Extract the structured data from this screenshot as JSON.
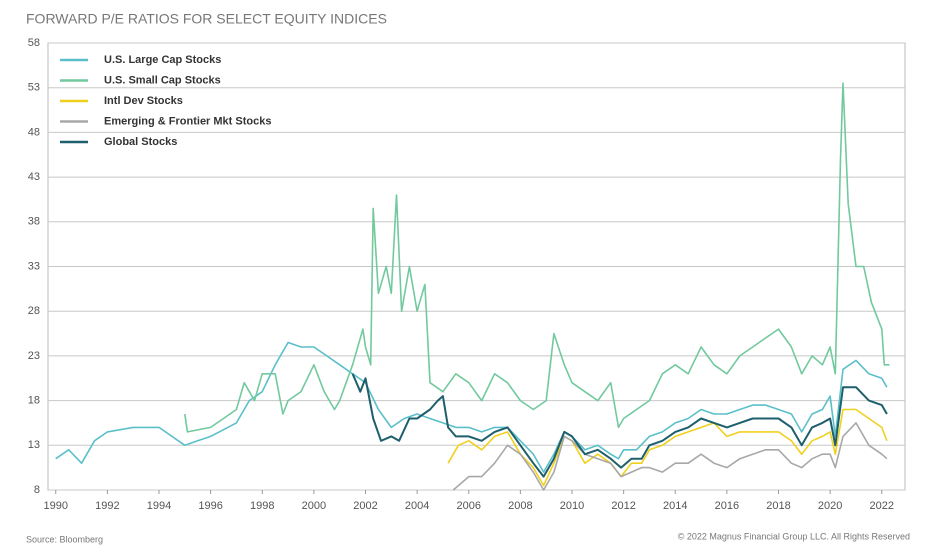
{
  "chart_data": {
    "type": "line",
    "title": "FORWARD P/E RATIOS FOR SELECT EQUITY INDICES",
    "source": "Source: Bloomberg",
    "copyright": "© 2022 Magnus Financial Group LLC. All Rights Reserved",
    "xlim": [
      1989.7,
      2022.9
    ],
    "xticks": [
      1990,
      1992,
      1994,
      1996,
      1998,
      2000,
      2002,
      2004,
      2006,
      2008,
      2010,
      2012,
      2014,
      2016,
      2018,
      2020,
      2022
    ],
    "ylim": [
      8,
      58
    ],
    "yticks": [
      8,
      13,
      18,
      23,
      28,
      33,
      38,
      43,
      48,
      53,
      58
    ],
    "grid": true,
    "legend": "top-left",
    "series": [
      {
        "name": "U.S. Large Cap Stocks",
        "color": "#5bbfca",
        "x": [
          1990,
          1990.5,
          1991,
          1991.5,
          1992,
          1993,
          1994,
          1995,
          1995.5,
          1996,
          1997,
          1997.5,
          1998,
          1998.5,
          1999,
          1999.5,
          2000,
          2000.5,
          2001,
          2001.5,
          2002,
          2002.5,
          2003,
          2003.5,
          2004,
          2004.5,
          2005,
          2005.5,
          2006,
          2006.5,
          2007,
          2007.5,
          2008,
          2008.5,
          2008.9,
          2009.3,
          2009.7,
          2010,
          2010.5,
          2011,
          2011.5,
          2011.8,
          2012,
          2012.5,
          2013,
          2013.5,
          2014,
          2014.5,
          2015,
          2015.5,
          2016,
          2016.5,
          2017,
          2017.5,
          2018,
          2018.5,
          2018.9,
          2019.3,
          2019.7,
          2020,
          2020.2,
          2020.5,
          2021,
          2021.5,
          2022,
          2022.2
        ],
        "values": [
          11.5,
          12.5,
          11,
          13.5,
          14.5,
          15,
          15,
          13,
          13.5,
          14,
          15.5,
          18,
          19,
          22,
          24.5,
          24,
          24,
          23,
          22,
          21,
          20,
          17,
          15,
          16,
          16.5,
          16,
          15.5,
          15,
          15,
          14.5,
          15,
          15,
          13.5,
          12,
          10,
          12,
          14.5,
          14,
          12.5,
          13,
          12,
          11.5,
          12.5,
          12.5,
          14,
          14.5,
          15.5,
          16,
          17,
          16.5,
          16.5,
          17,
          17.5,
          17.5,
          17,
          16.5,
          14.5,
          16.5,
          17,
          18.5,
          14,
          21.5,
          22.5,
          21,
          20.5,
          19.5
        ]
      },
      {
        "name": "U.S. Small Cap Stocks",
        "color": "#72c99e",
        "x": [
          1995,
          1995.1,
          1996,
          1996.5,
          1997,
          1997.3,
          1997.7,
          1998,
          1998.5,
          1998.8,
          1999,
          1999.5,
          2000,
          2000.4,
          2000.8,
          2001,
          2001.5,
          2001.9,
          2002,
          2002.2,
          2002.3,
          2002.5,
          2002.8,
          2003,
          2003.2,
          2003.4,
          2003.7,
          2004,
          2004.3,
          2004.5,
          2005,
          2005.5,
          2006,
          2006.5,
          2007,
          2007.5,
          2008,
          2008.5,
          2009,
          2009.3,
          2009.7,
          2010,
          2010.5,
          2011,
          2011.5,
          2011.8,
          2012,
          2012.5,
          2013,
          2013.5,
          2014,
          2014.5,
          2015,
          2015.5,
          2016,
          2016.5,
          2017,
          2017.5,
          2018,
          2018.5,
          2018.9,
          2019.3,
          2019.7,
          2020,
          2020.2,
          2020.4,
          2020.5,
          2020.7,
          2021,
          2021.3,
          2021.6,
          2022,
          2022.1,
          2022.3
        ],
        "values": [
          16.5,
          14.5,
          15,
          16,
          17,
          20,
          18,
          21,
          21,
          16.5,
          18,
          19,
          22,
          19,
          17,
          18,
          22,
          26,
          24,
          22,
          39.5,
          30,
          33,
          30,
          41,
          28,
          33,
          28,
          31,
          20,
          19,
          21,
          20,
          18,
          21,
          20,
          18,
          17,
          18,
          25.5,
          22,
          20,
          19,
          18,
          20,
          15,
          16,
          17,
          18,
          21,
          22,
          21,
          24,
          22,
          21,
          23,
          24,
          25,
          26,
          24,
          21,
          23,
          22,
          24,
          21,
          45,
          53.5,
          40,
          33,
          33,
          29,
          26,
          22,
          22
        ]
      },
      {
        "name": "Intl Dev Stocks",
        "color": "#f0d01f",
        "x": [
          2005.2,
          2005.6,
          2006,
          2006.5,
          2007,
          2007.5,
          2008,
          2008.5,
          2008.9,
          2009.3,
          2009.7,
          2010,
          2010.5,
          2011,
          2011.5,
          2011.9,
          2012.3,
          2012.7,
          2013,
          2013.5,
          2014,
          2014.5,
          2015,
          2015.5,
          2016,
          2016.5,
          2017,
          2017.5,
          2018,
          2018.5,
          2018.9,
          2019.3,
          2019.7,
          2020,
          2020.2,
          2020.5,
          2021,
          2021.5,
          2022,
          2022.2
        ],
        "values": [
          11,
          13,
          13.5,
          12.5,
          14,
          14.5,
          12,
          10.5,
          8.5,
          11,
          14,
          13.5,
          11,
          12,
          11,
          9.5,
          11,
          11,
          12.5,
          13,
          14,
          14.5,
          15,
          15.5,
          14,
          14.5,
          14.5,
          14.5,
          14.5,
          13.5,
          12,
          13.5,
          14,
          14.5,
          12,
          17,
          17,
          16,
          15,
          13.5
        ]
      },
      {
        "name": "Emerging & Frontier Mkt Stocks",
        "color": "#a8a8a8",
        "x": [
          2005.4,
          2006,
          2006.5,
          2007,
          2007.5,
          2008,
          2008.5,
          2008.9,
          2009.3,
          2009.7,
          2010,
          2010.5,
          2011,
          2011.5,
          2011.9,
          2012.3,
          2012.7,
          2013,
          2013.5,
          2014,
          2014.5,
          2015,
          2015.5,
          2016,
          2016.5,
          2017,
          2017.5,
          2018,
          2018.5,
          2018.9,
          2019.3,
          2019.7,
          2020,
          2020.2,
          2020.5,
          2021,
          2021.5,
          2022,
          2022.2
        ],
        "values": [
          8,
          9.5,
          9.5,
          11,
          13,
          12,
          10,
          8,
          10,
          14,
          13.5,
          12,
          11.5,
          11,
          9.5,
          10,
          10.5,
          10.5,
          10,
          11,
          11,
          12,
          11,
          10.5,
          11.5,
          12,
          12.5,
          12.5,
          11,
          10.5,
          11.5,
          12,
          12,
          10.5,
          14,
          15.5,
          13,
          12,
          11.5
        ]
      },
      {
        "name": "Global Stocks",
        "color": "#1d5f6c",
        "x": [
          2001.5,
          2001.8,
          2002,
          2002.3,
          2002.6,
          2003,
          2003.3,
          2003.7,
          2004,
          2004.5,
          2004.8,
          2005,
          2005.2,
          2005.5,
          2006,
          2006.5,
          2007,
          2007.5,
          2008,
          2008.5,
          2008.9,
          2009.3,
          2009.7,
          2010,
          2010.5,
          2011,
          2011.5,
          2011.9,
          2012.3,
          2012.7,
          2013,
          2013.5,
          2014,
          2014.5,
          2015,
          2015.5,
          2016,
          2016.5,
          2017,
          2017.5,
          2018,
          2018.5,
          2018.9,
          2019.3,
          2019.7,
          2020,
          2020.2,
          2020.5,
          2021,
          2021.5,
          2022,
          2022.2
        ],
        "values": [
          21,
          19,
          20.5,
          16,
          13.5,
          14,
          13.5,
          16,
          16,
          17,
          18,
          18.5,
          15,
          14,
          14,
          13.5,
          14.5,
          15,
          13,
          11,
          9.5,
          11.5,
          14.5,
          14,
          12,
          12.5,
          11.5,
          10.5,
          11.5,
          11.5,
          13,
          13.5,
          14.5,
          15,
          16,
          15.5,
          15,
          15.5,
          16,
          16,
          16,
          15,
          13,
          15,
          15.5,
          16,
          13,
          19.5,
          19.5,
          18,
          17.5,
          16.5
        ]
      }
    ]
  }
}
